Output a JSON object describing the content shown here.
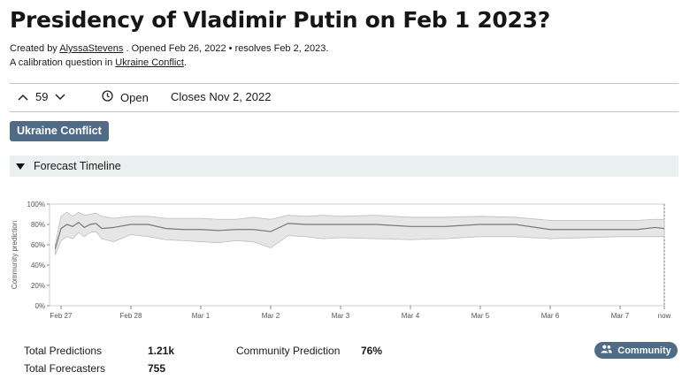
{
  "question": {
    "title": "Presidency of Vladimir Putin on Feb 1 2023?",
    "created_prefix": "Created by ",
    "author": "AlyssaStevens",
    "opened_text": " . Opened Feb 26, 2022 • resolves Feb 2, 2023.",
    "calibration_prefix": "A calibration question in ",
    "calibration_link": "Ukraine Conflict",
    "calibration_suffix": "."
  },
  "header_bar": {
    "vote_count": "59",
    "status": "Open",
    "closes": "Closes Nov 2, 2022"
  },
  "tag": {
    "label": "Ukraine Conflict"
  },
  "forecast_timeline": {
    "label": "Forecast Timeline"
  },
  "chart_data": {
    "type": "line",
    "ylabel": "Community prediction",
    "ylim": [
      0,
      100
    ],
    "yticks": [
      "0%",
      "20%",
      "40%",
      "60%",
      "80%",
      "100%"
    ],
    "xticks": [
      "Feb 27",
      "Feb 28",
      "Mar 1",
      "Mar 2",
      "Mar 3",
      "Mar 4",
      "Mar 5",
      "Mar 6",
      "Mar 7",
      "now"
    ],
    "series": [
      {
        "x": [
          "Feb 26 22:00",
          "Feb 27 00:00",
          "Feb 27 02:00",
          "Feb 27 04:00",
          "Feb 27 06:00",
          "Feb 27 08:00",
          "Feb 27 10:00",
          "Feb 27 12:00",
          "Feb 27 14:00",
          "Feb 27 18:00",
          "Feb 28 00:00",
          "Feb 28 06:00",
          "Feb 28 12:00",
          "Feb 28 18:00",
          "Mar 1 00:00",
          "Mar 1 06:00",
          "Mar 1 12:00",
          "Mar 1 18:00",
          "Mar 2 00:00",
          "Mar 2 06:00",
          "Mar 2 12:00",
          "Mar 2 18:00",
          "Mar 3 00:00",
          "Mar 3 12:00",
          "Mar 4 00:00",
          "Mar 4 12:00",
          "Mar 5 00:00",
          "Mar 5 12:00",
          "Mar 6 00:00",
          "Mar 6 12:00",
          "Mar 7 00:00",
          "Mar 7 06:00",
          "Mar 7 12:00",
          "now"
        ],
        "values": [
          56,
          76,
          80,
          78,
          82,
          77,
          80,
          81,
          76,
          77,
          80,
          80,
          76,
          75,
          75,
          74,
          75,
          75,
          73,
          81,
          80,
          80,
          80,
          80,
          78,
          78,
          80,
          80,
          75,
          75,
          75,
          75,
          77,
          76
        ],
        "lower": [
          50,
          64,
          68,
          66,
          72,
          68,
          72,
          73,
          66,
          63,
          70,
          68,
          65,
          64,
          63,
          62,
          64,
          63,
          57,
          69,
          68,
          66,
          67,
          66,
          65,
          66,
          68,
          68,
          66,
          67,
          68,
          68,
          68,
          68
        ],
        "upper": [
          60,
          88,
          92,
          88,
          92,
          89,
          90,
          91,
          88,
          86,
          88,
          88,
          86,
          86,
          86,
          85,
          85,
          87,
          85,
          89,
          88,
          89,
          88,
          89,
          87,
          87,
          88,
          87,
          84,
          84,
          84,
          84,
          85,
          85
        ]
      }
    ]
  },
  "stats": {
    "total_predictions_label": "Total Predictions",
    "total_predictions_value": "1.21k",
    "total_forecasters_label": "Total Forecasters",
    "total_forecasters_value": "755",
    "community_prediction_label": "Community Prediction",
    "community_prediction_value": "76%"
  },
  "community_button": {
    "label": "Community"
  },
  "icons": [
    "chevron-up-icon",
    "chevron-down-icon",
    "clock-icon",
    "triangle-down-icon",
    "people-icon"
  ],
  "colors": {
    "accent": "#4f6b85",
    "band": "#e6e6e6",
    "line": "#777777"
  }
}
